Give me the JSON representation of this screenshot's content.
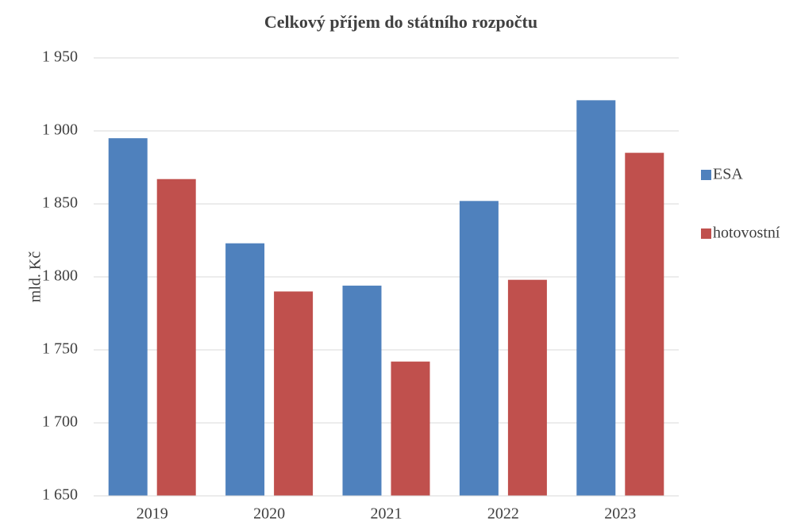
{
  "chart_data": {
    "type": "bar",
    "title": "Celkový příjem do státního rozpočtu",
    "y_label": "mld. Kč",
    "categories": [
      "2019",
      "2020",
      "2021",
      "2022",
      "2023"
    ],
    "series": [
      {
        "name": "ESA",
        "color": "#4f81bd",
        "values": [
          1895,
          1823,
          1794,
          1852,
          1921
        ]
      },
      {
        "name": "hotovostní",
        "color": "#c0504d",
        "values": [
          1867,
          1790,
          1742,
          1798,
          1885
        ]
      }
    ],
    "ylim": [
      1650,
      1950
    ],
    "yticks": [
      {
        "value": 1650,
        "label": "1 650"
      },
      {
        "value": 1700,
        "label": "1 700"
      },
      {
        "value": 1750,
        "label": "1 750"
      },
      {
        "value": 1800,
        "label": "1 800"
      },
      {
        "value": 1850,
        "label": "1 850"
      },
      {
        "value": 1900,
        "label": "1 900"
      },
      {
        "value": 1950,
        "label": "1 950"
      }
    ],
    "grid": true,
    "legend": "right"
  }
}
